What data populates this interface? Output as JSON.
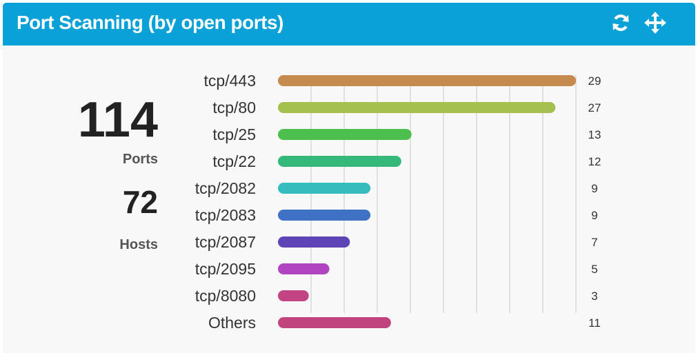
{
  "panel": {
    "title": "Port Scanning (by open ports)",
    "refresh_icon": "refresh-icon",
    "move_icon": "move-icon"
  },
  "stats": {
    "ports_value": "114",
    "ports_label": "Ports",
    "hosts_value": "72",
    "hosts_label": "Hosts"
  },
  "colors": {
    "header": "#0aa0d8",
    "panel_bg": "#f8f8f8"
  },
  "chart_data": {
    "type": "bar",
    "orientation": "horizontal",
    "categories": [
      "tcp/443",
      "tcp/80",
      "tcp/25",
      "tcp/22",
      "tcp/2082",
      "tcp/2083",
      "tcp/2087",
      "tcp/2095",
      "tcp/8080",
      "Others"
    ],
    "values": [
      29,
      27,
      13,
      12,
      9,
      9,
      7,
      5,
      3,
      11
    ],
    "colors": [
      "#c48a4e",
      "#a6c050",
      "#4cbf4e",
      "#34b97a",
      "#36bcbc",
      "#3f72c4",
      "#5f44b8",
      "#b144c0",
      "#c24485",
      "#c2447e"
    ],
    "grid": true
  }
}
